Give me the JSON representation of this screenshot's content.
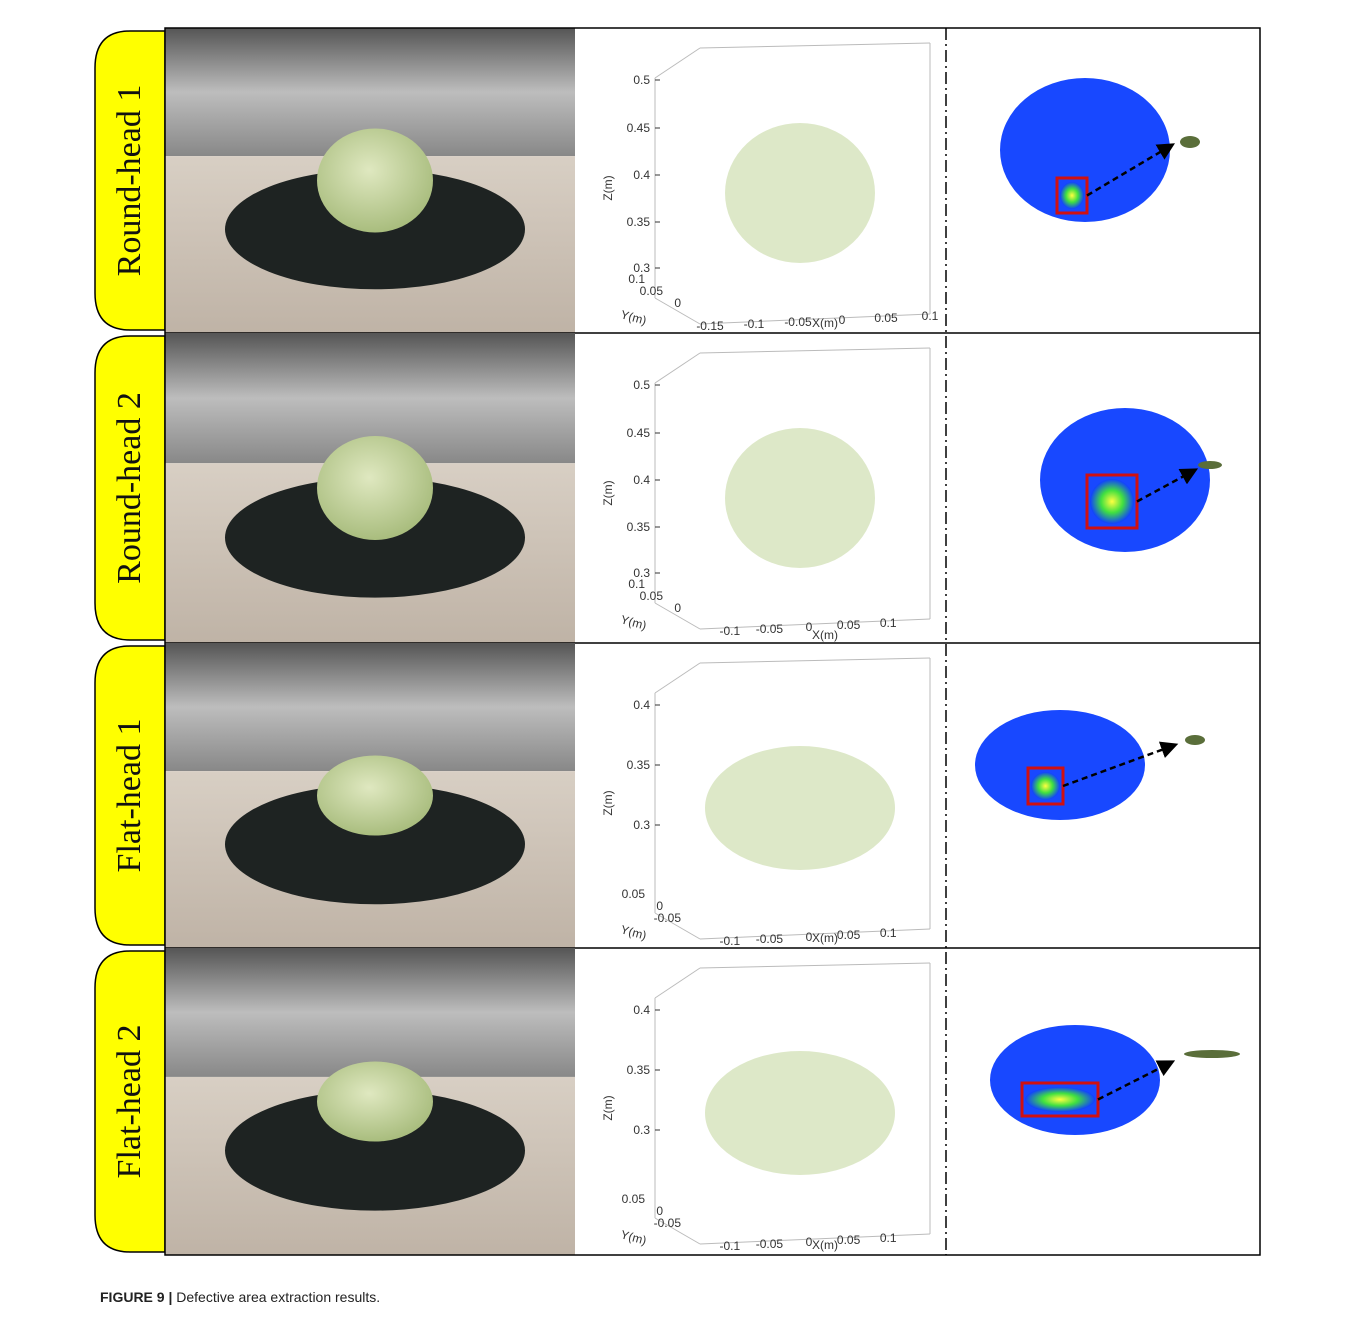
{
  "figure": {
    "axis_labels": {
      "z": "Z(m)",
      "y": "Y(m)",
      "x": "X(m)"
    },
    "rows": [
      {
        "label": "Round-head 1",
        "zticks": [
          "0.5",
          "0.45",
          "0.4",
          "0.35",
          "0.3"
        ],
        "yticks": [
          "0.1",
          "0.05",
          "0"
        ],
        "xticks": [
          "-0.15",
          "-0.1",
          "-0.05",
          "0",
          "0.05",
          "0.1"
        ]
      },
      {
        "label": "Round-head 2",
        "zticks": [
          "0.5",
          "0.45",
          "0.4",
          "0.35",
          "0.3"
        ],
        "yticks": [
          "0.1",
          "0.05",
          "0"
        ],
        "xticks": [
          "-0.1",
          "-0.05",
          "0",
          "0.05",
          "0.1"
        ]
      },
      {
        "label": "Flat-head 1",
        "zticks": [
          "0.4",
          "0.35",
          "0.3"
        ],
        "yticks": [
          "0.05",
          "0",
          "-0.05"
        ],
        "xticks": [
          "-0.1",
          "-0.05",
          "0",
          "0.05",
          "0.1"
        ]
      },
      {
        "label": "Flat-head 2",
        "zticks": [
          "0.4",
          "0.35",
          "0.3"
        ],
        "yticks": [
          "0.05",
          "0",
          "-0.05"
        ],
        "xticks": [
          "-0.1",
          "-0.05",
          "0",
          "0.05",
          "0.1"
        ]
      }
    ],
    "caption": {
      "label": "FIGURE 9 |",
      "text": "Defective area extraction results."
    }
  }
}
